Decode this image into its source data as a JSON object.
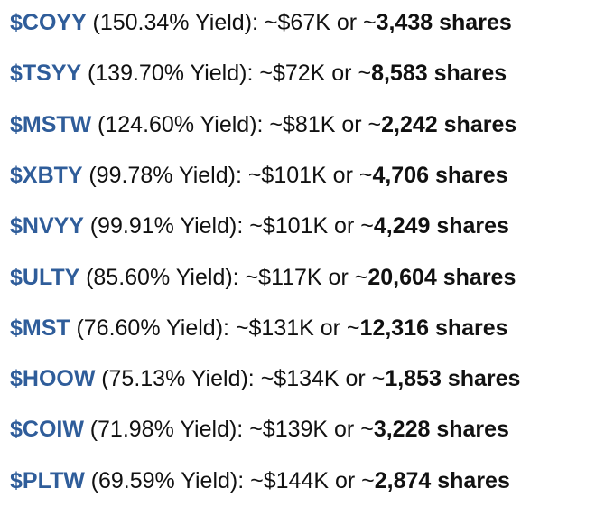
{
  "lines": [
    {
      "ticker": "$COYY",
      "detail": "(150.34% Yield): ~$67K or ~",
      "shares": "3,438 shares"
    },
    {
      "ticker": "$TSYY",
      "detail": "(139.70% Yield): ~$72K or ~",
      "shares": "8,583 shares"
    },
    {
      "ticker": "$MSTW",
      "detail": "(124.60% Yield): ~$81K or ~",
      "shares": "2,242 shares"
    },
    {
      "ticker": "$XBTY",
      "detail": "(99.78% Yield): ~$101K or ~",
      "shares": "4,706 shares"
    },
    {
      "ticker": "$NVYY",
      "detail": "(99.91% Yield): ~$101K or ~",
      "shares": "4,249 shares"
    },
    {
      "ticker": "$ULTY",
      "detail": "(85.60% Yield): ~$117K or ~",
      "shares": "20,604 shares"
    },
    {
      "ticker": "$MST",
      "detail": "(76.60% Yield): ~$131K or ~",
      "shares": "12,316 shares"
    },
    {
      "ticker": "$HOOW",
      "detail": "(75.13% Yield): ~$134K or ~",
      "shares": "1,853 shares"
    },
    {
      "ticker": "$COIW",
      "detail": "(71.98% Yield): ~$139K or ~",
      "shares": "3,228 shares"
    },
    {
      "ticker": "$PLTW",
      "detail": "(69.59% Yield): ~$144K or ~",
      "shares": "2,874 shares"
    }
  ]
}
